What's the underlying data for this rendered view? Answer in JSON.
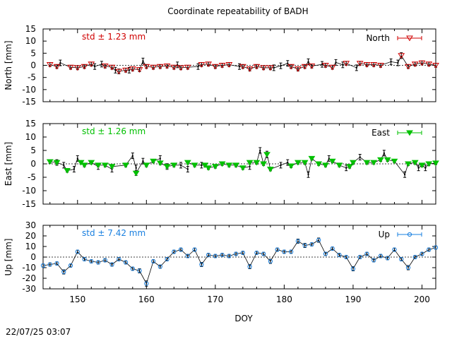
{
  "title": "Coordinate repeatability of BADH",
  "timestamp": "22/07/25 03:07",
  "colors": {
    "north": "#d00000",
    "east": "#00c000",
    "up": "#1a80e0",
    "black": "#000000"
  },
  "chart_data": [
    {
      "type": "scatter",
      "panel": "north",
      "ylabel": "North [mm]",
      "legend": "North",
      "legend_position": "top-right",
      "annotation": "std ± 1.23 mm",
      "xlim": [
        145,
        202
      ],
      "ylim": [
        -15,
        15
      ],
      "yticks": [
        15,
        10,
        5,
        0,
        -5,
        -10,
        -15
      ],
      "marker": "triangle-down-open",
      "black_x": [
        147.5,
        152.5,
        153.5,
        155.5,
        157.5,
        159.5,
        164.5,
        167.5,
        173.5,
        178.5,
        179.5,
        180.5,
        183.5,
        185.5,
        187.5,
        188.5,
        190.5,
        195.5,
        196.5
      ],
      "black_y": [
        1.0,
        -0.5,
        0.5,
        -2.0,
        -2.0,
        1.8,
        0.2,
        -0.5,
        -0.5,
        -1.0,
        -0.2,
        0.8,
        1.5,
        0.4,
        1.2,
        0.2,
        -1.0,
        1.5,
        1.0
      ],
      "x": [
        146,
        147,
        149,
        150,
        151,
        152,
        154,
        155,
        156,
        157,
        158,
        159,
        160,
        161,
        162,
        163,
        164,
        165,
        166,
        168,
        169,
        170,
        171,
        172,
        174,
        175,
        176,
        177,
        178,
        181,
        182,
        183,
        184,
        186,
        187,
        189,
        191,
        192,
        193,
        194,
        197,
        198,
        199,
        200,
        201,
        202
      ],
      "y": [
        0.3,
        -0.5,
        -0.8,
        -1.0,
        -0.5,
        0.5,
        -0.3,
        -0.8,
        -2.5,
        -2.0,
        -1.5,
        -1.8,
        -0.5,
        -0.8,
        -0.5,
        -0.3,
        -0.8,
        -1.0,
        -0.8,
        0.3,
        0.5,
        -0.5,
        0.0,
        0.3,
        -0.5,
        -1.5,
        -0.5,
        -1.0,
        -1.0,
        -0.5,
        -1.5,
        -0.5,
        -0.3,
        0.0,
        -0.8,
        0.8,
        0.8,
        0.3,
        0.3,
        0.0,
        4.0,
        -0.5,
        0.5,
        1.0,
        0.5,
        0.0
      ],
      "err": [
        0.8,
        0.8,
        0.8,
        0.8,
        0.8,
        0.8,
        0.8,
        0.8,
        1.0,
        0.8,
        0.8,
        0.8,
        0.8,
        0.8,
        0.8,
        0.8,
        0.8,
        0.8,
        0.8,
        0.8,
        0.8,
        0.8,
        0.8,
        0.8,
        0.8,
        0.8,
        0.8,
        0.8,
        0.8,
        0.8,
        0.8,
        0.8,
        0.8,
        0.8,
        0.8,
        0.8,
        0.8,
        0.8,
        0.8,
        0.8,
        1.2,
        0.8,
        0.8,
        0.8,
        0.8,
        0.8
      ]
    },
    {
      "type": "scatter",
      "panel": "east",
      "ylabel": "East [mm]",
      "legend": "East",
      "legend_position": "top-right",
      "annotation": "std ± 1.26 mm",
      "xlim": [
        145,
        202
      ],
      "ylim": [
        -15,
        15
      ],
      "yticks": [
        15,
        10,
        5,
        0,
        -5,
        -10,
        -15
      ],
      "marker": "triangle-down-filled",
      "black_x": [
        147,
        148,
        149.5,
        150,
        153,
        155,
        158,
        158.5,
        159.5,
        162,
        163,
        165,
        166,
        168,
        175,
        176.5,
        179.5,
        180.5,
        183.5,
        186.5,
        189,
        191,
        194.5,
        197.5,
        199.5,
        200.5
      ],
      "black_y": [
        0.5,
        -0.5,
        -2.0,
        2.0,
        -1.0,
        -2.0,
        3.0,
        -1.5,
        1.0,
        2.0,
        -1.0,
        -0.5,
        -2.0,
        -0.5,
        -1.0,
        5.0,
        -0.5,
        0.5,
        -4.0,
        2.0,
        -1.5,
        2.5,
        4.0,
        -4.0,
        -1.5,
        -1.5
      ],
      "x": [
        146,
        147,
        148.5,
        150.5,
        151,
        152,
        153,
        154,
        155,
        157,
        158.5,
        160,
        161,
        162,
        163,
        164,
        166,
        167,
        168.5,
        169,
        170,
        171,
        172,
        173,
        174,
        175,
        176,
        177,
        177.5,
        178,
        181,
        182,
        183,
        184,
        185,
        186,
        187,
        188,
        189.5,
        190,
        192,
        193,
        194,
        195,
        196,
        198,
        199,
        200,
        201,
        202
      ],
      "y": [
        0.8,
        0.5,
        -2.5,
        0.5,
        -0.5,
        0.5,
        -0.5,
        -0.5,
        -1.0,
        -0.5,
        -3.5,
        -0.5,
        1.0,
        0.3,
        -1.0,
        -0.5,
        0.5,
        -0.5,
        -0.5,
        -1.5,
        -1.0,
        0.0,
        -0.5,
        -0.5,
        -1.5,
        0.5,
        0.5,
        0.0,
        3.5,
        -2.0,
        -0.8,
        0.5,
        0.5,
        2.0,
        0.0,
        -0.5,
        1.0,
        -0.5,
        -1.0,
        0.5,
        0.5,
        0.5,
        1.5,
        1.5,
        1.0,
        0.0,
        0.5,
        -0.5,
        0.0,
        0.3
      ],
      "err": [
        0.6,
        0.6,
        0.6,
        0.6,
        0.6,
        0.6,
        0.6,
        0.6,
        0.6,
        0.6,
        0.8,
        0.6,
        0.6,
        0.6,
        0.6,
        0.6,
        0.6,
        0.6,
        0.6,
        0.6,
        0.6,
        0.6,
        0.6,
        0.6,
        0.6,
        0.6,
        0.6,
        0.6,
        1.2,
        0.6,
        0.6,
        0.6,
        0.6,
        0.6,
        0.6,
        0.6,
        0.6,
        0.6,
        0.6,
        0.6,
        0.6,
        0.6,
        0.6,
        0.6,
        0.6,
        0.6,
        0.6,
        0.6,
        0.6,
        0.6
      ]
    },
    {
      "type": "line",
      "panel": "up",
      "ylabel": "Up [mm]",
      "legend": "Up",
      "legend_position": "top-right",
      "annotation": "std ± 7.42 mm",
      "xlim": [
        145,
        202
      ],
      "ylim": [
        -30,
        30
      ],
      "yticks": [
        30,
        20,
        10,
        0,
        -10,
        -20,
        -30
      ],
      "xticks": [
        150,
        160,
        170,
        180,
        190,
        200
      ],
      "xlabel": "DOY",
      "marker": "circle-open",
      "x": [
        145,
        146,
        147,
        148,
        149,
        150,
        151,
        152,
        153,
        154,
        155,
        156,
        157,
        158,
        159,
        160,
        161,
        162,
        163,
        164,
        165,
        166,
        167,
        168,
        169,
        170,
        171,
        172,
        173,
        174,
        175,
        176,
        177,
        178,
        179,
        180,
        181,
        182,
        183,
        184,
        185,
        186,
        187,
        188,
        189,
        190,
        191,
        192,
        193,
        194,
        195,
        196,
        197,
        198,
        199,
        200,
        201,
        202
      ],
      "y": [
        -8,
        -7,
        -6,
        -14,
        -8,
        5,
        -2,
        -4,
        -5,
        -3,
        -7,
        -2,
        -5,
        -11,
        -13,
        -25,
        -4,
        -9,
        -2,
        5,
        7,
        1,
        7,
        -7,
        2,
        1,
        2,
        1,
        3,
        4,
        -9,
        4,
        3,
        -4,
        7,
        5,
        5,
        15,
        11,
        12,
        16,
        3,
        8,
        2,
        0,
        -11,
        0,
        3,
        -3,
        1,
        -1,
        7,
        -2,
        -10,
        0,
        3,
        7,
        9
      ],
      "err": [
        1.5,
        1.5,
        1.5,
        2,
        1.5,
        1.5,
        1.5,
        1.5,
        1.5,
        1.5,
        1.5,
        1.5,
        1.5,
        1.5,
        2,
        2.5,
        1.5,
        1.5,
        1.5,
        1.5,
        1.5,
        1.5,
        1.5,
        2,
        1.5,
        1.5,
        1.5,
        1.5,
        1.5,
        1.5,
        2,
        1.5,
        1.5,
        2,
        1.5,
        1.5,
        1.5,
        2,
        2,
        1.5,
        2,
        1.5,
        1.5,
        1.5,
        1.5,
        2,
        1.5,
        1.5,
        1.5,
        1.5,
        1.5,
        1.5,
        1.5,
        2,
        1.5,
        1.5,
        1.5,
        1.5
      ]
    }
  ]
}
